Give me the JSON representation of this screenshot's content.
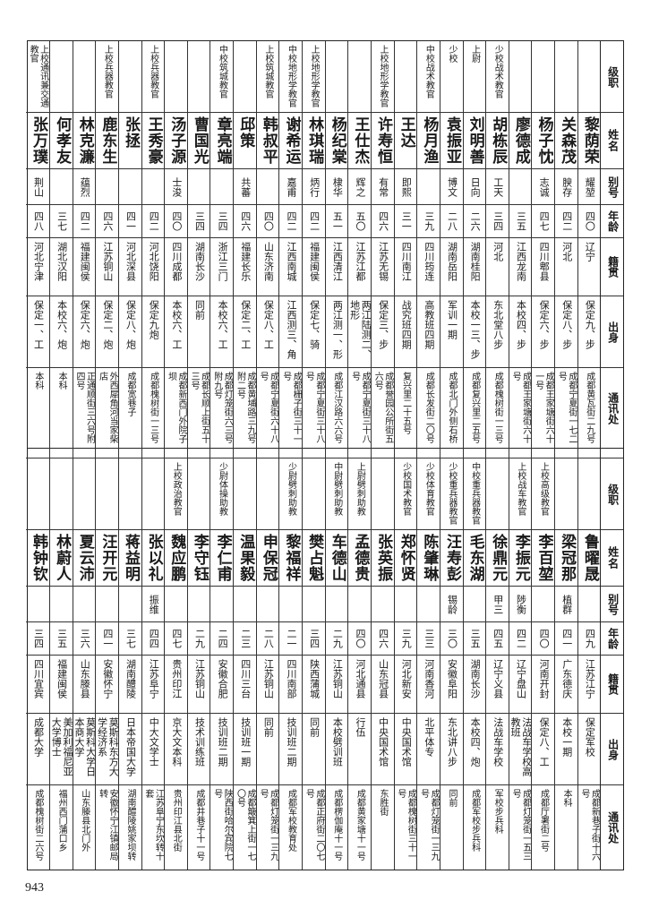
{
  "headers": {
    "rank": "级职",
    "name": "姓名",
    "alias": "别号",
    "age": "年龄",
    "native": "籍贯",
    "origin": "出身",
    "address": "通讯处"
  },
  "top": [
    {
      "rank": "",
      "name": "黎荫荣",
      "alias": "耀堃",
      "age": "四〇",
      "native": "辽宁",
      "origin": "保定九、步",
      "address": "成都黄瓦街二九号"
    },
    {
      "rank": "",
      "name": "关森茂",
      "alias": "腴存",
      "age": "四二",
      "native": "河北",
      "origin": "保定八、步",
      "address": "成都宁夏街一七二号"
    },
    {
      "rank": "",
      "name": "杨子忱",
      "alias": "志诚",
      "age": "四七",
      "native": "四川郫县",
      "origin": "保定六、步",
      "address": "成都王家塘街六十一号"
    },
    {
      "rank": "",
      "name": "廖德成",
      "alias": "",
      "age": "三五",
      "native": "江西龙南",
      "origin": "本校四、步",
      "address": "成都王家塘街六十号"
    },
    {
      "rank": "少校战术教官",
      "name": "胡栋辰",
      "alias": "工天",
      "age": "三四",
      "native": "河北",
      "origin": "东北堂八步",
      "address": "成都槐树街一三号"
    },
    {
      "rank": "上尉",
      "name": "刘明善",
      "alias": "日向",
      "age": "二六",
      "native": "湖南桂阳",
      "origin": "本校一三、步",
      "address": "成都复兴里二五号"
    },
    {
      "rank": "少校",
      "name": "袁振亚",
      "alias": "博文",
      "age": "二八",
      "native": "湖南岳阳",
      "origin": "军训一期",
      "address": "成都北门外侧石桥"
    },
    {
      "rank": "中校战术教官",
      "name": "杨月渔",
      "alias": "",
      "age": "三九",
      "native": "四川筠连",
      "origin": "高教班四期",
      "address": "成都长发街二〇号"
    },
    {
      "rank": "",
      "name": "王达",
      "alias": "即熙",
      "age": "三一",
      "native": "四川南江",
      "origin": "战究班四期",
      "address": "复兴里二十五号"
    },
    {
      "rank": "上校地形学教官",
      "name": "许寿恒",
      "alias": "有常",
      "age": "四六",
      "native": "江苏无锡",
      "origin": "保定三、步",
      "address": "成都誉园公所街五六号"
    },
    {
      "rank": "",
      "name": "王仕杰",
      "alias": "辉之",
      "age": "五〇",
      "native": "江苏江都",
      "origin": "两江陆测二、地形",
      "address": "成都宁夏街三十八号"
    },
    {
      "rank": "",
      "name": "杨纪棠",
      "alias": "棣华",
      "age": "五一",
      "native": "江西清江",
      "origin": "两江测一、形",
      "address": "成都江汉路六六号"
    },
    {
      "rank": "上校地形学教官",
      "name": "林琪瑞",
      "alias": "炳行",
      "age": "四二",
      "native": "福建闽侯",
      "origin": "保定七、骑",
      "address": "成都宁夏街三十八号"
    },
    {
      "rank": "中校地形学教官",
      "name": "谢希运",
      "alias": "嘉甫",
      "age": "四二",
      "native": "江西南城",
      "origin": "江西测三、角",
      "address": "成都栅子街三十一号"
    },
    {
      "rank": "上校筑城教官",
      "name": "韩叔平",
      "alias": "",
      "age": "四〇",
      "native": "山东济南",
      "origin": "保定八、工",
      "address": "成都宁夏街六十八号"
    },
    {
      "rank": "",
      "name": "邱策",
      "alias": "共蕃",
      "age": "四六",
      "native": "福建长乐",
      "origin": "保定二、工",
      "address": "成都黄埔路三九号附二号"
    },
    {
      "rank": "中校筑城教官",
      "name": "章亮端",
      "alias": "",
      "age": "三四",
      "native": "浙江三门",
      "origin": "本校六、工",
      "address": "成都灯笼街六三号附九号"
    },
    {
      "rank": "",
      "name": "曹国光",
      "alias": "",
      "age": "三四",
      "native": "湖南长沙",
      "origin": "同前",
      "address": "成都长顺上街五十三号"
    },
    {
      "rank": "",
      "name": "汤子源",
      "alias": "士浚",
      "age": "四〇",
      "native": "四川成都",
      "origin": "本校六、工",
      "address": "成都新西门外院子坝"
    },
    {
      "rank": "上校兵器教官",
      "name": "王秀豪",
      "alias": "",
      "age": "四二",
      "native": "河北饶阳",
      "origin": "保定九炮",
      "address": "成都槐树街一三号"
    },
    {
      "rank": "",
      "name": "张拯",
      "alias": "",
      "age": "四一",
      "native": "河北深县",
      "origin": "保定八、炮",
      "address": "成都宽巷子"
    },
    {
      "rank": "上校兵器教官",
      "name": "鹿东生",
      "alias": "",
      "age": "四六",
      "native": "江苏铜山",
      "origin": "保定二、炮",
      "address": "外西犀角河当家柴店"
    },
    {
      "rank": "",
      "name": "林克濂",
      "alias": "蕴烈",
      "age": "四二",
      "native": "福建闽侯",
      "origin": "保定六、炮",
      "address": "正通顺街三六号附四号"
    },
    {
      "rank": "",
      "name": "何孝友",
      "alias": "",
      "age": "三七",
      "native": "湖北汉阳",
      "origin": "本校六、炮",
      "address": "本科"
    },
    {
      "rank": "上校通讯兼交通教官",
      "name": "张万璞",
      "alias": "荆山",
      "age": "四八",
      "native": "河北宁津",
      "origin": "保定一、工",
      "address": "本科"
    }
  ],
  "bottom": [
    {
      "rank": "",
      "name": "鲁曜晟",
      "alias": "",
      "age": "四九",
      "native": "江苏江宁",
      "origin": "保定军校",
      "address": "成都新巷子街十六号"
    },
    {
      "rank": "",
      "name": "梁冠那",
      "alias": "植群",
      "age": "四一",
      "native": "广东德庆",
      "origin": "本校一期",
      "address": "本科"
    },
    {
      "rank": "上校高级教官",
      "name": "李百堃",
      "alias": "",
      "age": "四〇",
      "native": "河南开封",
      "origin": "保定八、工",
      "address": "成都厅署街二号"
    },
    {
      "rank": "上校战车教官",
      "name": "李振元",
      "alias": "陟衡",
      "age": "四二",
      "native": "辽宁盘山",
      "origin": "法战车学校高教班",
      "address": "成都灯笼街一五三号"
    },
    {
      "rank": "",
      "name": "徐鼎元",
      "alias": "甲三",
      "age": "四五",
      "native": "辽宁义县",
      "origin": "法战车学校",
      "address": "军校步兵科"
    },
    {
      "rank": "中校重兵器教官",
      "name": "毛东湖",
      "alias": "",
      "age": "三五",
      "native": "湖南长沙",
      "origin": "本校四、炮",
      "address": "成都军校步兵科"
    },
    {
      "rank": "少校重兵器教官",
      "name": "汪寿彭",
      "alias": "锡龄",
      "age": "三〇",
      "native": "安徽阜阳",
      "origin": "东北讲八步",
      "address": "同前"
    },
    {
      "rank": "少校体育教官",
      "name": "陈肇琳",
      "alias": "",
      "age": "三三",
      "native": "河南香河",
      "origin": "北平体专",
      "address": "成都灯笼街一三九号"
    },
    {
      "rank": "少校国术教官",
      "name": "郑怀贤",
      "alias": "",
      "age": "三九",
      "native": "河北新安",
      "origin": "中央国术馆",
      "address": "成都槐树街三十一号"
    },
    {
      "rank": "",
      "name": "张英振",
      "alias": "",
      "age": "四六",
      "native": "山东冠县",
      "origin": "中央国术馆",
      "address": "东胜街"
    },
    {
      "rank": "上尉劈刺助教",
      "name": "孟德贵",
      "alias": "",
      "age": "四〇",
      "native": "河北通县",
      "origin": "行伍",
      "address": "成都黄家塘十一号"
    },
    {
      "rank": "中尉劈刺助教",
      "name": "车德山",
      "alias": "",
      "age": "二九",
      "native": "江苏铜山",
      "origin": "本校劈训班",
      "address": "成都楞伽庵十一号"
    },
    {
      "rank": "",
      "name": "樊占魁",
      "alias": "",
      "age": "三四",
      "native": "陕西蒲城",
      "origin": "同前",
      "address": "成都正府街二〇七号"
    },
    {
      "rank": "少尉劈刺助教",
      "name": "黎福祥",
      "alias": "",
      "age": "二一",
      "native": "四川南部",
      "origin": "技训班二期",
      "address": "成都军校教育处"
    },
    {
      "rank": "",
      "name": "申保冠",
      "alias": "",
      "age": "二八",
      "native": "江苏铜山",
      "origin": "同前",
      "address": "成都灯笼街一三九号"
    },
    {
      "rank": "",
      "name": "温果毅",
      "alias": "",
      "age": "二三",
      "native": "四川三台",
      "origin": "技训班一期",
      "address": "成都簸箕上街一七〇号"
    },
    {
      "rank": "少尉体操助教",
      "name": "李仁甫",
      "alias": "",
      "age": "二四",
      "native": "安徽合肥",
      "origin": "技训班二期",
      "address": "陕西街哈尔宾院七号"
    },
    {
      "rank": "",
      "name": "李守钰",
      "alias": "",
      "age": "二九",
      "native": "江苏铜山",
      "origin": "技术训练班",
      "address": "成都井巷子十一号"
    },
    {
      "rank": "上校政治教官",
      "name": "魏应鹏",
      "alias": "",
      "age": "四七",
      "native": "贵州印江",
      "origin": "京大文本科",
      "address": "贵州印江县北街"
    },
    {
      "rank": "",
      "name": "张以礼",
      "alias": "振维",
      "age": "四四",
      "native": "江苏阜宁",
      "origin": "中大文学士",
      "address": "江苏阜宁东坎转十套"
    },
    {
      "rank": "",
      "name": "蒋益明",
      "alias": "",
      "age": "三七",
      "native": "湖南醴陵",
      "origin": "日本帝国大学",
      "address": "湖南醴陵姚家坝转"
    },
    {
      "rank": "",
      "name": "汪开元",
      "alias": "",
      "age": "四一",
      "native": "安徽怀宁",
      "origin": "莫斯科东方大学经济系",
      "address": "安徽怀宁江镇邮局转"
    },
    {
      "rank": "",
      "name": "夏云沛",
      "alias": "",
      "age": "三六",
      "native": "山东滕县",
      "origin": "莫斯科大学日本商大学",
      "address": "山东滕县北门外"
    },
    {
      "rank": "",
      "name": "林蔚人",
      "alias": "",
      "age": "三五",
      "native": "福建闽侯",
      "origin": "美加利福尼亚大学博士",
      "address": "福州西门蒲口乡"
    },
    {
      "rank": "",
      "name": "韩钟钦",
      "alias": "",
      "age": "三四",
      "native": "四川宜宾",
      "origin": "成都大学",
      "address": "成都槐树街二六号"
    }
  ],
  "page_number": "943"
}
